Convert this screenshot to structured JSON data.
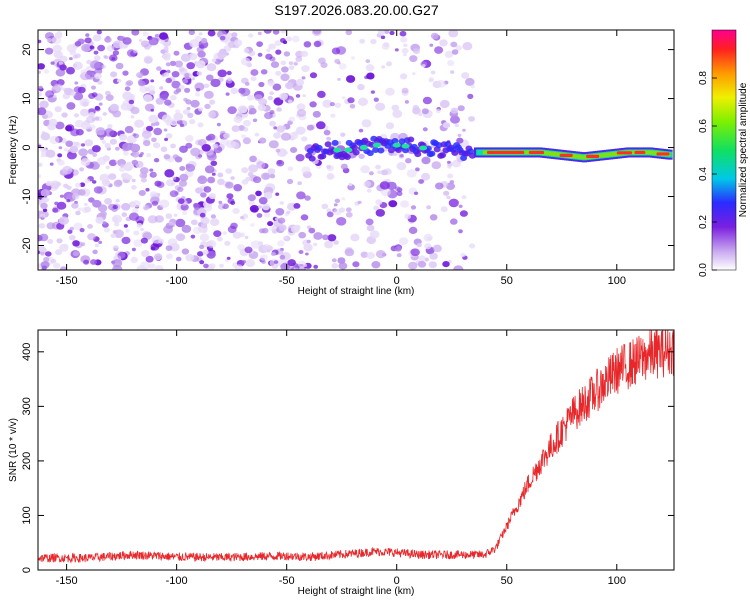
{
  "title": "S197.2026.083.20.00.G27",
  "chart_data": [
    {
      "type": "heatmap",
      "xlabel": "Height of straight line (km)",
      "ylabel": "Frequency (Hz)",
      "xlim": [
        -163,
        126
      ],
      "ylim": [
        -25,
        24
      ],
      "xticks": [
        -150,
        -100,
        -50,
        0,
        50,
        100
      ],
      "yticks": [
        -20,
        -10,
        0,
        10,
        20
      ],
      "noise_region_x": [
        -163,
        35
      ],
      "signal_trace": {
        "x": [
          -40,
          -30,
          -20,
          -10,
          0,
          10,
          20,
          35,
          45,
          55,
          65,
          75,
          85,
          95,
          105,
          115,
          125
        ],
        "freq": [
          -1,
          -0.5,
          -0.5,
          0.5,
          0.5,
          0,
          -0.5,
          -1,
          -1,
          -1,
          -1,
          -1.5,
          -2,
          -1.5,
          -1,
          -1,
          -1.5
        ]
      },
      "colorbar": {
        "label": "Normalized spectral amplitude",
        "range": [
          0.0,
          1.0
        ],
        "ticks": [
          0.0,
          0.2,
          0.4,
          0.6,
          0.8
        ],
        "tick_labels": [
          "0.0",
          "0.2",
          "0.4",
          "0.6",
          "0.8"
        ]
      }
    },
    {
      "type": "line",
      "xlabel": "Height of straight line (km)",
      "ylabel": "SNR (10 * v/v)",
      "xlim": [
        -163,
        126
      ],
      "ylim": [
        0,
        440
      ],
      "xticks": [
        -150,
        -100,
        -50,
        0,
        50,
        100
      ],
      "yticks": [
        0,
        100,
        200,
        300,
        400
      ],
      "series": [
        {
          "name": "SNR",
          "color": "#e8272a",
          "x": [
            -163,
            -140,
            -120,
            -100,
            -80,
            -60,
            -50,
            -40,
            -20,
            -10,
            0,
            10,
            20,
            30,
            40,
            45,
            50,
            55,
            60,
            65,
            70,
            75,
            80,
            85,
            90,
            95,
            100,
            105,
            110,
            115,
            120,
            126
          ],
          "y": [
            22,
            22,
            28,
            24,
            23,
            25,
            26,
            24,
            30,
            34,
            32,
            28,
            28,
            28,
            28,
            40,
            80,
            120,
            160,
            195,
            225,
            255,
            285,
            305,
            325,
            345,
            365,
            375,
            385,
            395,
            400,
            405
          ]
        }
      ]
    }
  ]
}
